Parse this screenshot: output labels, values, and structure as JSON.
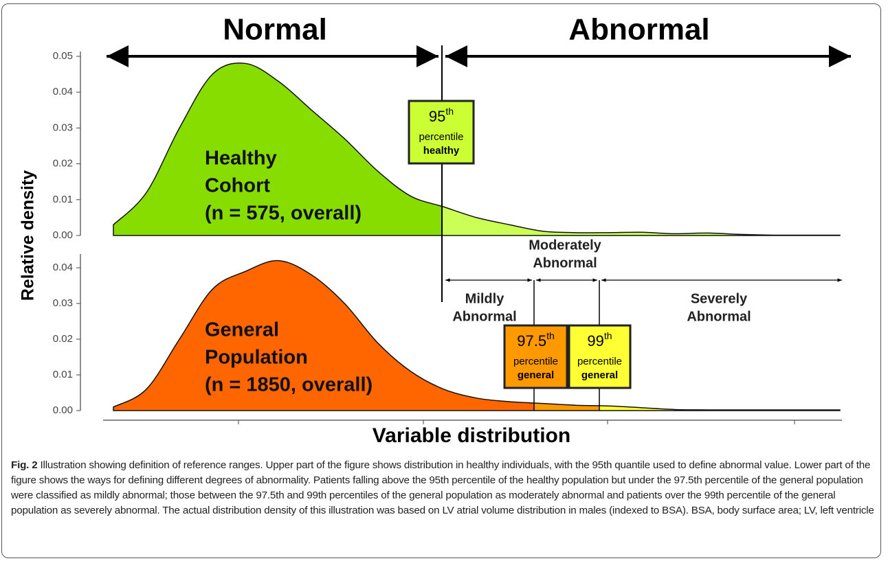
{
  "chart_data": [
    {
      "type": "area",
      "categories": [
        null,
        null,
        null,
        null,
        null,
        null,
        null,
        null,
        null,
        null,
        null,
        null,
        null,
        null,
        null,
        null,
        null,
        null,
        null,
        null,
        null,
        null,
        null
      ],
      "values": [
        0.003,
        0.012,
        0.03,
        0.045,
        0.048,
        0.043,
        0.035,
        0.027,
        0.018,
        0.011,
        0.008,
        0.005,
        0.003,
        0.0012,
        0.0008,
        0.0008,
        0.0009,
        0.0005,
        0.0007,
        0.0003,
        0.0001,
        0.0001,
        0.0001
      ],
      "colors": [
        "#88dd00",
        "#ccff55"
      ],
      "ylim": [
        0,
        0.05
      ],
      "yticks": [
        {
          "value": 0,
          "label": "0.00"
        },
        {
          "value": 0.01,
          "label": "0.01"
        },
        {
          "value": 0.02,
          "label": "0.02"
        },
        {
          "value": 0.03,
          "label": "0.03"
        },
        {
          "value": 0.04,
          "label": "0.04"
        },
        {
          "value": 0.05,
          "label": "0.05"
        }
      ],
      "label": [
        "Healthy",
        "Cohort",
        "(n = 575, overall)"
      ]
    },
    {
      "type": "area",
      "categories": [
        null,
        null,
        null,
        null,
        null,
        null,
        null,
        null,
        null,
        null,
        null,
        null,
        null,
        null,
        null,
        null,
        null,
        null,
        null,
        null,
        null,
        null,
        null
      ],
      "values": [
        0.001,
        0.006,
        0.02,
        0.034,
        0.039,
        0.042,
        0.038,
        0.03,
        0.019,
        0.011,
        0.006,
        0.0035,
        0.0025,
        0.002,
        0.0015,
        0.0013,
        0.0008,
        0.0003,
        0.0002,
        0.0002,
        0.0002,
        0.0002,
        0.0002
      ],
      "colors": [
        "#ff6600",
        "#ff9900",
        "#ffff33"
      ],
      "ylim": [
        0,
        0.04
      ],
      "yticks": [
        {
          "value": 0,
          "label": "0.00"
        },
        {
          "value": 0.01,
          "label": "0.01"
        },
        {
          "value": 0.02,
          "label": "0.02"
        },
        {
          "value": 0.03,
          "label": "0.03"
        },
        {
          "value": 0.04,
          "label": "0.04"
        }
      ],
      "label": [
        "General",
        "Population",
        "(n = 1850, overall)"
      ]
    }
  ],
  "y_label": "Relative density",
  "x_label": "Variable distribution",
  "ranges": {
    "normal": "Normal",
    "abnormal": "Abnormal",
    "mild": [
      "Mildly",
      "Abnormal"
    ],
    "moderate": [
      "Moderately",
      "Abnormal"
    ],
    "severe": [
      "Severely",
      "Abnormal"
    ]
  },
  "boxes": [
    {
      "value": "95",
      "sup": "th",
      "line2": "percentile",
      "line3": "healthy",
      "color": "#ccff33"
    },
    {
      "value": "97.5",
      "sup": "th",
      "line2": "percentile",
      "line3": "general",
      "color": "#ff9900"
    },
    {
      "value": "99",
      "sup": "th",
      "line2": "percentile",
      "line3": "general",
      "color": "#ffff33"
    }
  ],
  "caption": {
    "label": "Fig. 2",
    "text": "Illustration showing definition of reference ranges. Upper part of the figure shows distribution in healthy individuals, with the 95th quantile used to define abnormal value. Lower part of the figure shows the ways for defining different degrees of abnormality. Patients falling above the 95th percentile of the healthy population but under the 97.5th percentile of the general population were classified as mildly abnormal; those between the 97.5th and 99th percentiles of the general population as moderately abnormal and patients over the 99th percentile of the general population as severely abnormal. The actual distribution density of this illustration was based on LV atrial volume distribution in males (indexed to BSA). BSA, body surface area; LV, left ventricle"
  }
}
